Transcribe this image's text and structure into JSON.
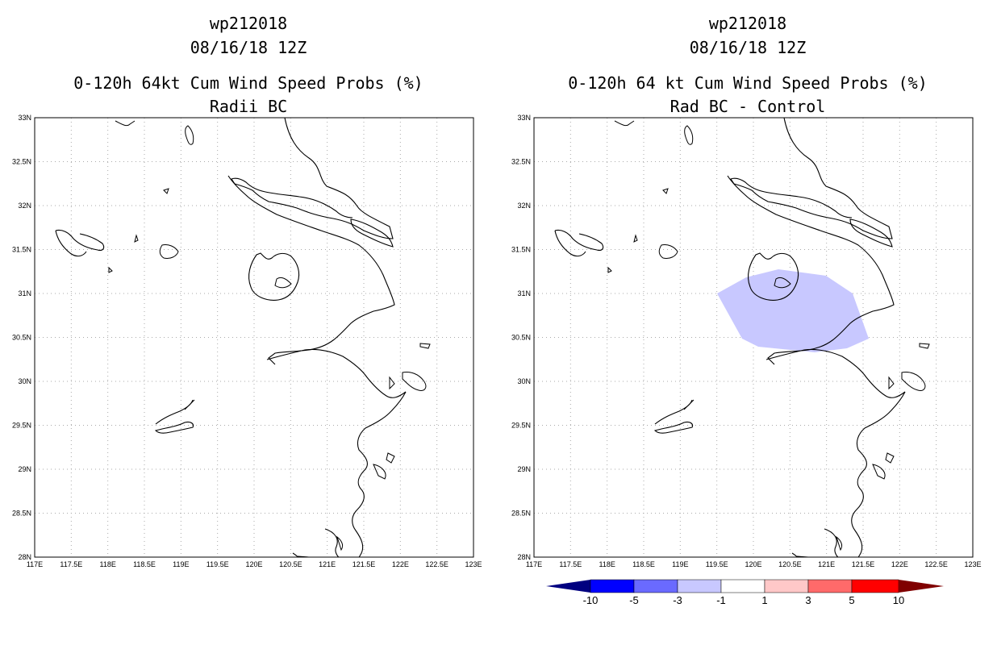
{
  "panels": [
    {
      "id": "left",
      "storm_id": "wp212018",
      "date": "08/16/18 12Z",
      "title": "0-120h 64kt Cum Wind Speed Probs (%)",
      "subtitle": "Radii BC",
      "has_prob_area": false
    },
    {
      "id": "right",
      "storm_id": "wp212018",
      "date": "08/16/18 12Z",
      "title": "0-120h 64 kt Cum Wind Speed Probs (%)",
      "subtitle": "Rad BC - Control",
      "has_prob_area": true
    }
  ],
  "axes": {
    "lon_labels": [
      "117E",
      "117.5E",
      "118E",
      "118.5E",
      "119E",
      "119.5E",
      "120E",
      "120.5E",
      "121E",
      "121.5E",
      "122E",
      "122.5E",
      "123E"
    ],
    "lat_labels": [
      "28N",
      "28.5N",
      "29N",
      "29.5N",
      "30N",
      "30.5N",
      "31N",
      "31.5N",
      "32N",
      "32.5N",
      "33N"
    ]
  },
  "colorbar": {
    "labels": [
      "-10",
      "-5",
      "-3",
      "-1",
      "1",
      "3",
      "5",
      "10"
    ],
    "colors": [
      "#000080",
      "#0000ff",
      "#6a6aff",
      "#c8c8ff",
      "#ffffff",
      "#ffc8c8",
      "#ff6a6a",
      "#ff0000",
      "#800000"
    ]
  },
  "prob_area_color": "#c8c8ff",
  "coast_color": "#000000"
}
